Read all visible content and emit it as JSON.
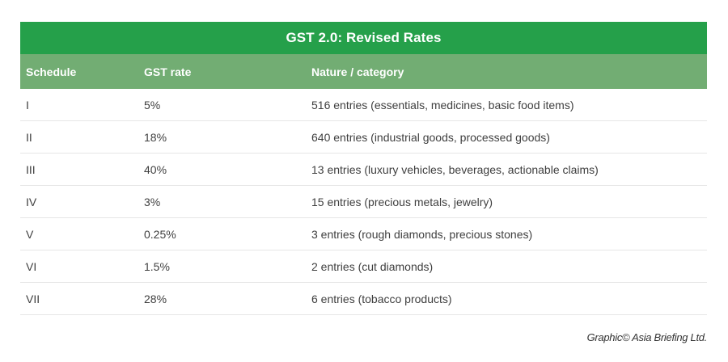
{
  "title": "GST 2.0: Revised Rates",
  "columns": {
    "schedule": "Schedule",
    "rate": "GST rate",
    "nature": "Nature / category"
  },
  "rows": [
    {
      "schedule": "I",
      "rate": "5%",
      "nature": "516 entries (essentials, medicines, basic food items)"
    },
    {
      "schedule": "II",
      "rate": "18%",
      "nature": "640 entries (industrial goods, processed goods)"
    },
    {
      "schedule": "III",
      "rate": "40%",
      "nature": "13 entries (luxury vehicles, beverages, actionable claims)"
    },
    {
      "schedule": "IV",
      "rate": "3%",
      "nature": "15 entries (precious metals, jewelry)"
    },
    {
      "schedule": "V",
      "rate": "0.25%",
      "nature": "3 entries (rough diamonds, precious stones)"
    },
    {
      "schedule": "VI",
      "rate": "1.5%",
      "nature": "2 entries (cut diamonds)"
    },
    {
      "schedule": "VII",
      "rate": "28%",
      "nature": "6 entries (tobacco products)"
    }
  ],
  "credit": "Graphic© Asia Briefing Ltd.",
  "colors": {
    "title_bg": "#25a04a",
    "header_bg": "#72ad73",
    "row_divider": "#e6e6e6"
  }
}
